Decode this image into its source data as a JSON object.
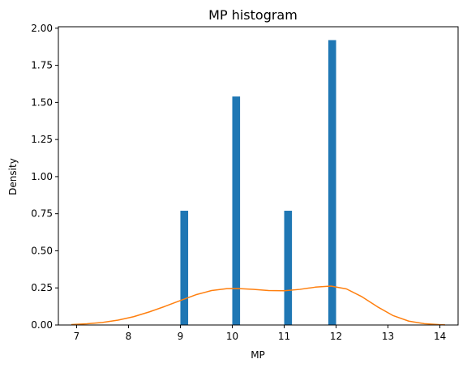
{
  "chart_data": {
    "type": "bar",
    "title": "MP histogram",
    "xlabel": "MP",
    "ylabel": "Density",
    "xlim": [
      6.65,
      14.35
    ],
    "ylim": [
      0,
      2.01
    ],
    "x_ticks": [
      7,
      8,
      9,
      10,
      11,
      12,
      13,
      14
    ],
    "x_tick_labels": [
      "7",
      "8",
      "9",
      "10",
      "11",
      "12",
      "13",
      "14"
    ],
    "y_ticks": [
      0,
      0.25,
      0.5,
      0.75,
      1.0,
      1.25,
      1.5,
      1.75,
      2.0
    ],
    "y_tick_labels": [
      "0.00",
      "0.25",
      "0.50",
      "0.75",
      "1.00",
      "1.25",
      "1.50",
      "1.75",
      "2.00"
    ],
    "grid": false,
    "series": [
      {
        "kind": "histogram",
        "color": "#1f77b4",
        "bins": [
          {
            "x0": 9.0,
            "x1": 9.15,
            "value": 0.77
          },
          {
            "x0": 10.0,
            "x1": 10.15,
            "value": 1.54
          },
          {
            "x0": 11.0,
            "x1": 11.15,
            "value": 0.77
          },
          {
            "x0": 11.85,
            "x1": 12.0,
            "value": 1.92
          }
        ]
      },
      {
        "kind": "kde-line",
        "color": "#ff7f0e",
        "x": [
          6.9,
          7.2,
          7.5,
          7.8,
          8.1,
          8.4,
          8.7,
          9.0,
          9.3,
          9.6,
          9.9,
          10.1,
          10.4,
          10.7,
          11.0,
          11.3,
          11.6,
          11.9,
          12.2,
          12.5,
          12.8,
          13.1,
          13.4,
          13.7,
          14.0,
          14.1
        ],
        "y": [
          0.003,
          0.008,
          0.017,
          0.033,
          0.056,
          0.088,
          0.125,
          0.165,
          0.204,
          0.232,
          0.245,
          0.246,
          0.24,
          0.232,
          0.231,
          0.24,
          0.255,
          0.262,
          0.243,
          0.19,
          0.122,
          0.063,
          0.026,
          0.009,
          0.002,
          0.001
        ]
      }
    ]
  }
}
